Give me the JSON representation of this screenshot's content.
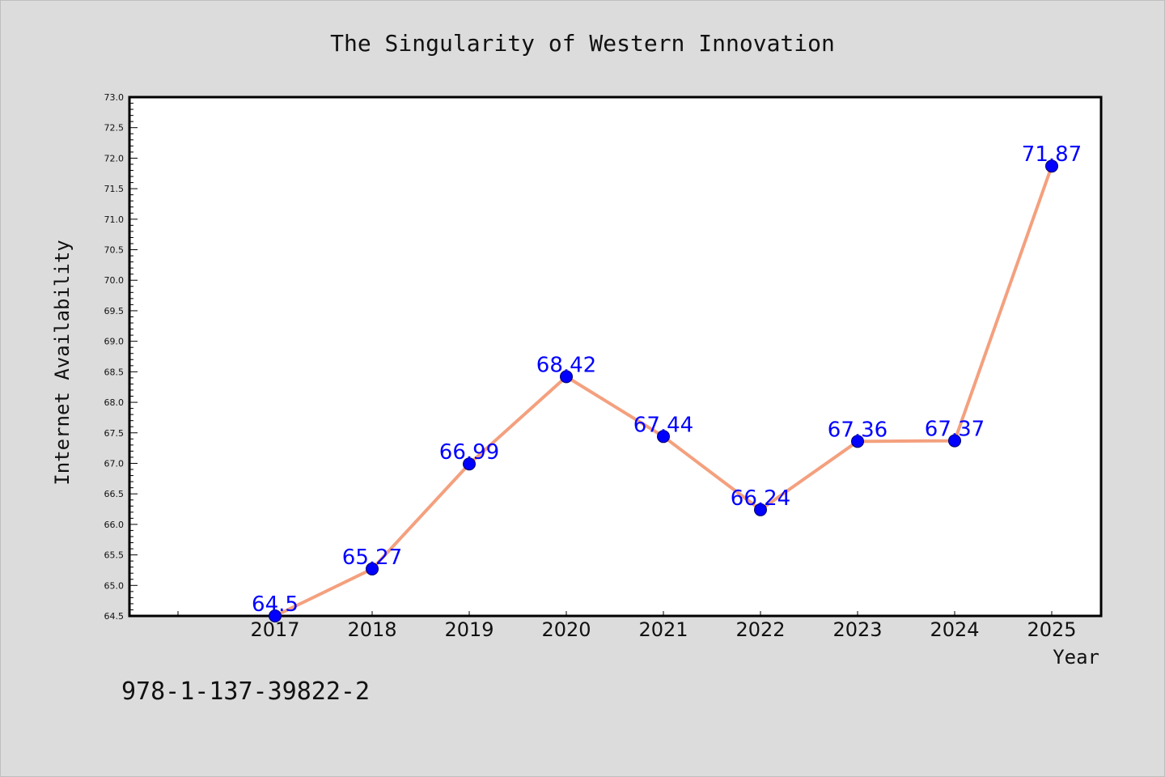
{
  "chart_data": {
    "type": "line",
    "title": "The Singularity of Western Innovation",
    "xlabel": "Year",
    "ylabel": "Internet Availability",
    "categories": [
      "2017",
      "2018",
      "2019",
      "2020",
      "2021",
      "2022",
      "2023",
      "2024",
      "2025"
    ],
    "values": [
      64.5,
      65.27,
      66.99,
      68.42,
      67.44,
      66.24,
      67.36,
      67.37,
      71.87
    ],
    "data_labels": [
      "64.5",
      "65.27",
      "66.99",
      "68.42",
      "67.44",
      "66.24",
      "67.36",
      "67.37",
      "71.87"
    ],
    "ylim": [
      64.5,
      73.0
    ],
    "yticks": [
      "64.5",
      "65.0",
      "65.5",
      "66.0",
      "66.5",
      "67.0",
      "67.5",
      "68.0",
      "68.5",
      "69.0",
      "69.5",
      "70.0",
      "70.5",
      "71.0",
      "71.5",
      "72.0",
      "72.5",
      "73.0"
    ],
    "grid": false,
    "line_color": "#f4a07e",
    "marker_color": "#0000ff",
    "label_color": "#0000ff"
  },
  "footnote": "978-1-137-39822-2"
}
